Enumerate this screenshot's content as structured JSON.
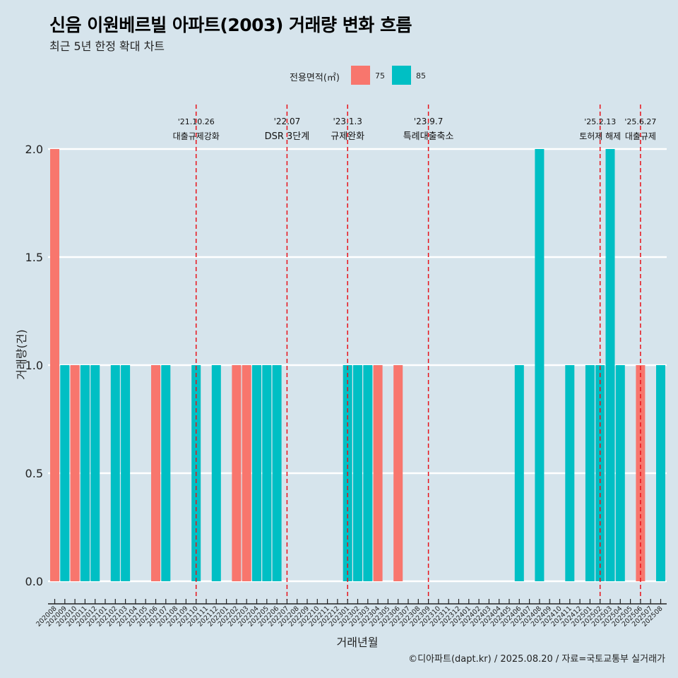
{
  "title": "신음 이원베르빌 아파트(2003) 거래량 변화 흐름",
  "subtitle": "최근 5년 한정 확대 차트",
  "caption": "©디아파트(dapt.kr) / 2025.08.20 / 자료=국토교통부 실거래가",
  "legend": {
    "title": "전용면적(㎡)",
    "items": [
      {
        "label": "75",
        "color": "#f8766d"
      },
      {
        "label": "85",
        "color": "#00bfc4"
      }
    ]
  },
  "chart_data": {
    "type": "bar",
    "title": "신음 이원베르빌 아파트(2003) 거래량 변화 흐름",
    "subtitle": "최근 5년 한정 확대 차트",
    "xlabel": "거래년월",
    "ylabel": "거래량(건)",
    "ylim": [
      0,
      2
    ],
    "yticks": [
      "0.0",
      "0.5",
      "1.0",
      "1.5",
      "2.0"
    ],
    "grid": true,
    "legend_position": "top",
    "categories": [
      "202008",
      "202009",
      "202010",
      "202011",
      "202012",
      "202101",
      "202102",
      "202103",
      "202104",
      "202105",
      "202106",
      "202107",
      "202108",
      "202109",
      "202110",
      "202111",
      "202112",
      "202201",
      "202202",
      "202203",
      "202204",
      "202205",
      "202206",
      "202207",
      "202208",
      "202209",
      "202210",
      "202211",
      "202212",
      "202301",
      "202302",
      "202303",
      "202304",
      "202305",
      "202306",
      "202307",
      "202308",
      "202309",
      "202310",
      "202311",
      "202312",
      "202401",
      "202402",
      "202403",
      "202404",
      "202405",
      "202406",
      "202407",
      "202408",
      "202409",
      "202410",
      "202411",
      "202412",
      "202501",
      "202502",
      "202503",
      "202504",
      "202505",
      "202506",
      "202507",
      "202508"
    ],
    "series": [
      {
        "name": "75",
        "color": "#f8766d",
        "values": [
          2,
          0,
          1,
          1,
          0,
          0,
          0,
          0,
          0,
          0,
          1,
          0,
          0,
          0,
          0,
          0,
          0,
          0,
          1,
          1,
          0,
          0,
          0,
          0,
          0,
          0,
          0,
          0,
          0,
          0,
          0,
          0,
          1,
          0,
          1,
          0,
          0,
          0,
          0,
          0,
          0,
          0,
          0,
          0,
          0,
          0,
          0,
          0,
          0,
          0,
          0,
          0,
          0,
          0,
          0,
          0,
          0,
          0,
          1,
          0,
          0
        ]
      },
      {
        "name": "85",
        "color": "#00bfc4",
        "values": [
          0,
          1,
          0,
          1,
          1,
          0,
          1,
          1,
          0,
          0,
          0,
          1,
          0,
          0,
          1,
          0,
          1,
          0,
          0,
          0,
          1,
          1,
          1,
          0,
          0,
          0,
          0,
          0,
          0,
          1,
          1,
          1,
          0,
          0,
          0,
          0,
          0,
          0,
          0,
          0,
          0,
          0,
          0,
          0,
          0,
          0,
          1,
          0,
          2,
          0,
          0,
          1,
          0,
          1,
          1,
          2,
          1,
          0,
          0,
          0,
          1
        ]
      }
    ],
    "annotations": [
      {
        "date": "'21.10.26",
        "text": "대출규제강화",
        "at": "202110"
      },
      {
        "date": "'22.07",
        "text": "DSR 3단계",
        "at": "202207"
      },
      {
        "date": "'23.1.3",
        "text": "규제완화",
        "at": "202301"
      },
      {
        "date": "'23.9.7",
        "text": "특례대출축소",
        "at": "202309"
      },
      {
        "date": "'25.2.13",
        "text": "토허제 해제",
        "at": "202502"
      },
      {
        "date": "'25.6.27",
        "text": "대출규제",
        "at": "202506"
      }
    ]
  }
}
